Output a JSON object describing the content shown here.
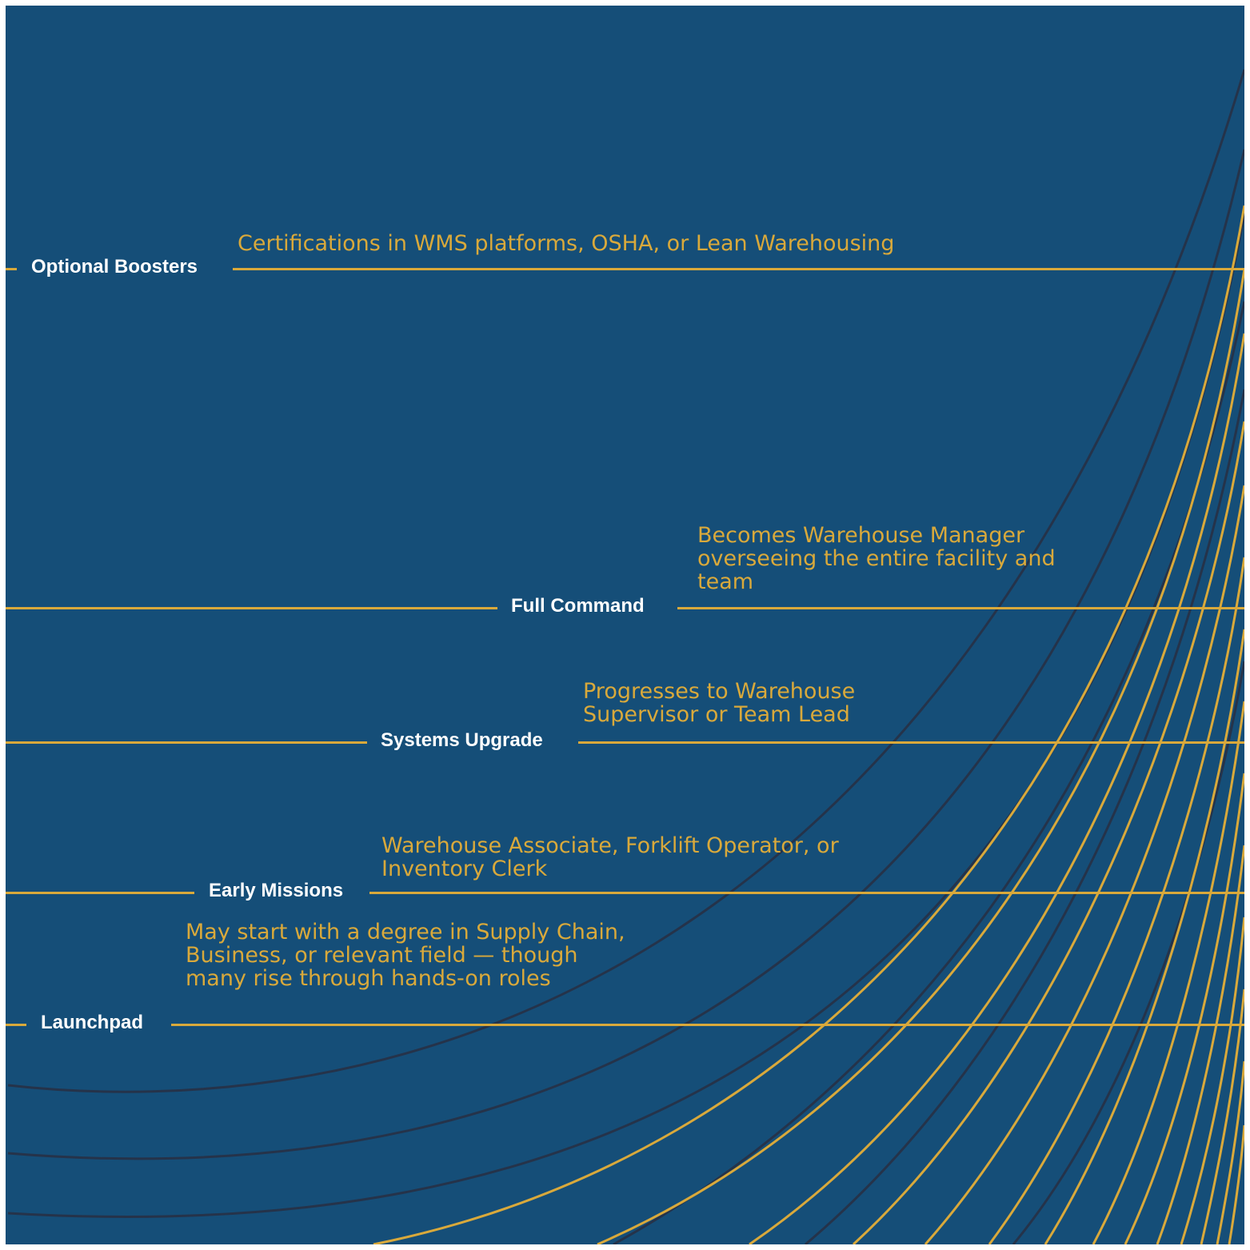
{
  "colors": {
    "background": "#154e78",
    "accent_gold": "#d9a93b",
    "dark_line": "#25334a",
    "stage_text": "#ffffff"
  },
  "stages": [
    {
      "label": "Optional Boosters",
      "description": "Certifications in WMS platforms, OSHA, or Lean Warehousing"
    },
    {
      "label": "Full Command",
      "description": "Becomes Warehouse Manager overseeing the entire facility and team"
    },
    {
      "label": "Systems Upgrade",
      "description": "Progresses to Warehouse Supervisor or Team Lead"
    },
    {
      "label": "Early Missions",
      "description": "Warehouse Associate, Forklift Operator, or Inventory Clerk"
    },
    {
      "label": "Launchpad",
      "description": "May start with a degree in Supply Chain, Business, or relevant field — though many rise through hands-on roles"
    }
  ]
}
